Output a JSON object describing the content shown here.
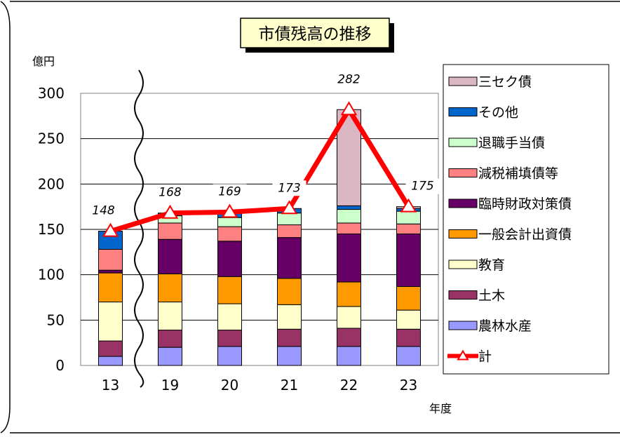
{
  "chart_data": {
    "type": "bar",
    "title": "市債残高の推移",
    "ylabel": "億円",
    "xlabel": "年度",
    "ylim": [
      0,
      300
    ],
    "yticks": [
      "0",
      "50",
      "100",
      "150",
      "200",
      "250",
      "300"
    ],
    "categories": [
      "13",
      "19",
      "20",
      "21",
      "22",
      "23"
    ],
    "series": [
      {
        "name": "農林水産",
        "color": "#9999ff",
        "values": [
          10,
          20,
          21,
          21,
          21,
          21
        ]
      },
      {
        "name": "土木",
        "color": "#993366",
        "values": [
          17,
          19,
          18,
          19,
          20,
          19
        ]
      },
      {
        "name": "教育",
        "color": "#ffffcc",
        "values": [
          43,
          31,
          29,
          27,
          24,
          21
        ]
      },
      {
        "name": "一般会計出資債",
        "color": "#ff9900",
        "values": [
          32,
          31,
          30,
          29,
          27,
          26
        ]
      },
      {
        "name": "臨時財政対策債",
        "color": "#660066",
        "values": [
          3,
          38,
          39,
          45,
          53,
          58
        ]
      },
      {
        "name": "減税補填債等",
        "color": "#ff8080",
        "values": [
          23,
          18,
          16,
          14,
          12,
          11
        ]
      },
      {
        "name": "退職手当債",
        "color": "#ccffcc",
        "values": [
          0,
          8,
          10,
          13,
          15,
          14
        ]
      },
      {
        "name": "その他",
        "color": "#0066cc",
        "values": [
          20,
          3,
          6,
          5,
          4,
          3
        ]
      },
      {
        "name": "三セク債",
        "color": "#dbb7c4",
        "values": [
          0,
          0,
          0,
          0,
          106,
          2
        ]
      }
    ],
    "total": {
      "name": "計",
      "color": "#ff0000",
      "values": [
        148,
        168,
        169,
        173,
        282,
        175
      ],
      "labels": [
        "148",
        "168",
        "169",
        "173",
        "282",
        "175"
      ]
    },
    "legend_order": [
      "三セク債",
      "その他",
      "退職手当債",
      "減税補填債等",
      "臨時財政対策債",
      "一般会計出資債",
      "教育",
      "土木",
      "農林水産",
      "計"
    ],
    "legend_position": "right",
    "grid": true,
    "axis_break": "between 13 and 19"
  }
}
